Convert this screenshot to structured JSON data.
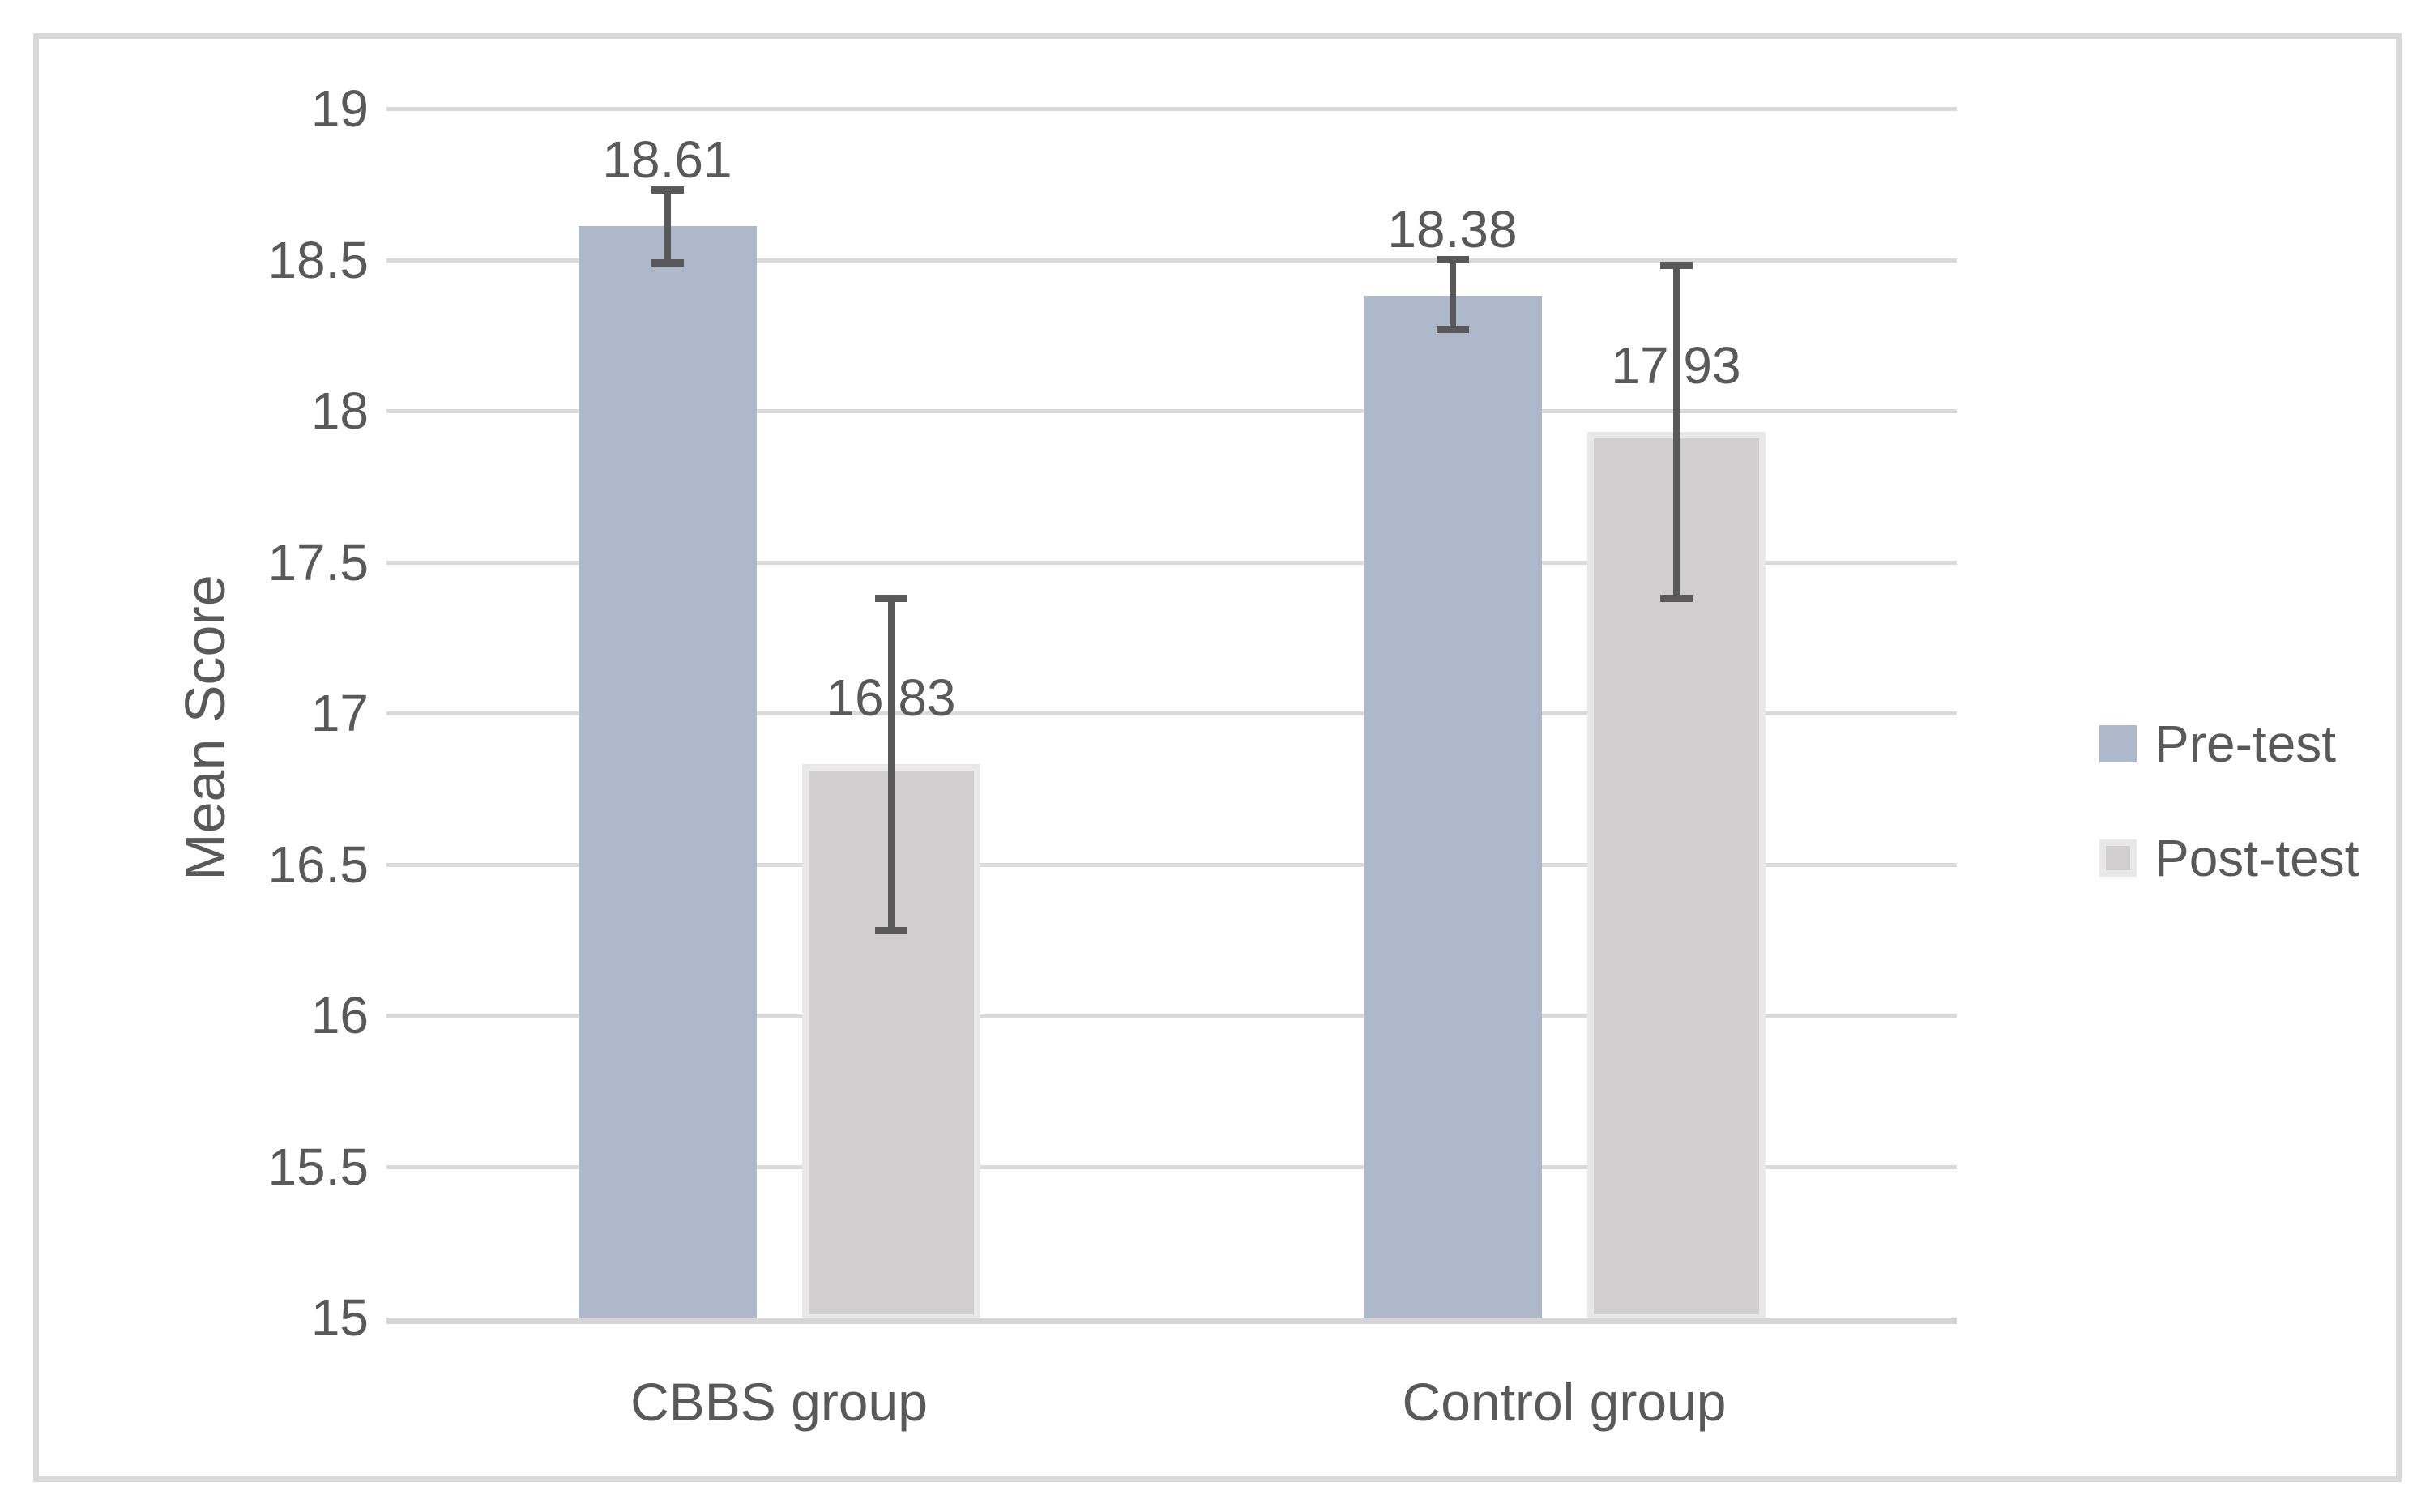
{
  "chart_data": {
    "type": "bar",
    "title": "",
    "xlabel": "",
    "ylabel": "Mean Score",
    "categories": [
      "CBBS group",
      "Control group"
    ],
    "series": [
      {
        "name": "Pre-test",
        "color": "#ADB9CA",
        "values": [
          18.61,
          18.38
        ],
        "data_labels": [
          "18.61",
          "18.38"
        ],
        "error_high": [
          18.73,
          18.5
        ],
        "error_low": [
          18.49,
          18.27
        ]
      },
      {
        "name": "Post-test",
        "color": "#D0CECE",
        "border_color": "#E8E8E8",
        "values": [
          16.83,
          17.93
        ],
        "data_labels": [
          "16.83",
          "17.93"
        ],
        "error_high": [
          17.38,
          18.48
        ],
        "error_low": [
          16.28,
          17.38
        ]
      }
    ],
    "ylim": [
      15,
      19
    ],
    "ytick_labels": [
      "15",
      "15.5",
      "16",
      "16.5",
      "17",
      "17.5",
      "18",
      "18.5",
      "19"
    ],
    "yticks": [
      15,
      15.5,
      16,
      16.5,
      17,
      17.5,
      18,
      18.5,
      19
    ],
    "grid": true,
    "legend_position": "right",
    "colors": {
      "text": "#595959",
      "gridline": "#DADADA",
      "error_bar": "#595959",
      "frame_border": "#D9D9D9"
    }
  }
}
